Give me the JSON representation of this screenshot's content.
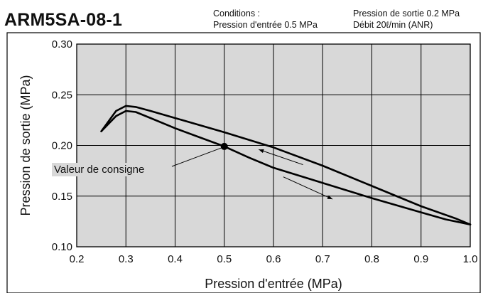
{
  "header": {
    "title": "ARM5SA-08-1",
    "conditions_label": "Conditions :",
    "inlet_condition": "Pression d'entrée  0.5 MPa",
    "outlet_condition": "Pression de sortie 0.2 MPa",
    "flow_condition": "Débit 20ℓ/min (ANR)"
  },
  "chart_data": {
    "type": "line",
    "title": "ARM5SA-08-1",
    "xlabel": "Pression d'entrée (MPa)",
    "ylabel": "Pression de sortie (MPa)",
    "xlim": [
      0.2,
      1.0
    ],
    "ylim": [
      0.1,
      0.3
    ],
    "xticks": [
      "0.2",
      "0.3",
      "0.4",
      "0.5",
      "0.6",
      "0.7",
      "0.8",
      "0.9",
      "1.0"
    ],
    "yticks": [
      "0.10",
      "0.15",
      "0.20",
      "0.25",
      "0.30"
    ],
    "grid": true,
    "series": [
      {
        "direction": "increasing",
        "x": [
          0.25,
          0.28,
          0.3,
          0.32,
          0.35,
          0.4,
          0.45,
          0.5,
          0.55,
          0.6,
          0.7,
          0.8,
          0.9,
          0.95,
          1.0
        ],
        "y": [
          0.214,
          0.229,
          0.234,
          0.233,
          0.227,
          0.217,
          0.208,
          0.199,
          0.188,
          0.178,
          0.163,
          0.148,
          0.134,
          0.127,
          0.122
        ]
      },
      {
        "direction": "decreasing",
        "x": [
          1.0,
          0.97,
          0.9,
          0.8,
          0.7,
          0.6,
          0.5,
          0.4,
          0.35,
          0.32,
          0.3,
          0.28,
          0.25
        ],
        "y": [
          0.122,
          0.128,
          0.14,
          0.16,
          0.18,
          0.198,
          0.213,
          0.227,
          0.234,
          0.238,
          0.239,
          0.234,
          0.214
        ]
      }
    ],
    "set_point": {
      "x": 0.5,
      "y": 0.199,
      "label": "Valeur de consigne"
    },
    "arrows": [
      {
        "direction": "decreasing",
        "from": [
          0.66,
          0.181
        ],
        "to": [
          0.57,
          0.196
        ]
      },
      {
        "direction": "increasing",
        "from": [
          0.62,
          0.169
        ],
        "to": [
          0.72,
          0.147
        ]
      }
    ],
    "colors": {
      "plot_background": "#d8d8d8",
      "grid": "#000000",
      "line": "#000000"
    }
  }
}
